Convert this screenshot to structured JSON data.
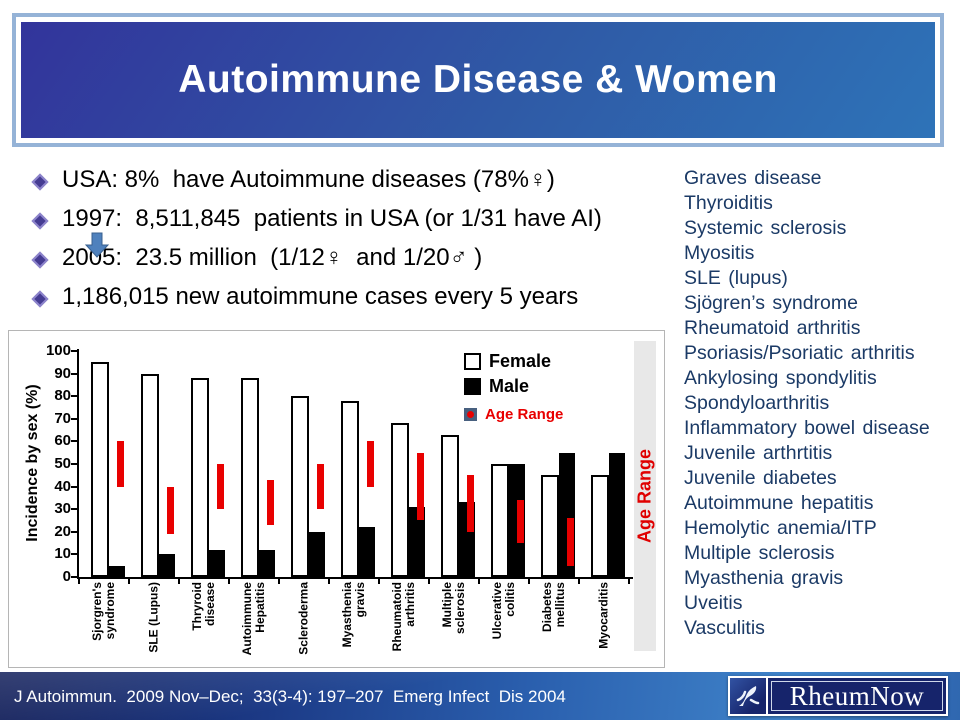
{
  "slide": {
    "title": "Autoimmune Disease & Women",
    "bullets": [
      "USA: 8%  have Autoimmune diseases (78%♀)",
      "1997:  8,511,845  patients in USA (or 1/31 have AI)",
      "2005:  23.5 million  (1/12♀  and 1/20♂ )",
      "1,186,015 new autoimmune cases every 5 years"
    ],
    "disease_list": [
      "Graves disease",
      "Thyroiditis",
      "Systemic sclerosis",
      "Myositis",
      "SLE (lupus)",
      "Sjögren’s syndrome",
      "Rheumatoid arthritis",
      "Psoriasis/Psoriatic arthritis",
      "Ankylosing spondylitis",
      "Spondyloarthritis",
      "Inflammatory bowel disease",
      "Juvenile arthrtitis",
      "Juvenile diabetes",
      "Autoimmune hepatitis",
      "Hemolytic anemia/ITP",
      "Multiple sclerosis",
      "Myasthenia gravis",
      "Uveitis",
      "Vasculitis"
    ],
    "footer": {
      "citation": "J Autoimmun.  2009 Nov–Dec;  33(3-4): 197–207  Emerg Infect  Dis 2004",
      "logo_text": "RheumNow"
    }
  },
  "chart_data": {
    "type": "bar",
    "title": "",
    "xlabel": "",
    "ylabel": "Incidence by sex (%)",
    "ylim": [
      0,
      100
    ],
    "ytick_step": 10,
    "grid": false,
    "legend_position": "top-right",
    "legend": [
      "Female",
      "Male",
      "Age Range"
    ],
    "side_label": "Age Range",
    "categories": [
      "Sjorgren's\nsyndrome",
      "SLE (Lupus)",
      "Thryroid\ndisease",
      "Autoimmune\nHepatitis",
      "Scleroderma",
      "Myasthenia\ngravis",
      "Rheumatoid\narthritis",
      "Multiple\nsclerosis",
      "Ulcerative\ncolitis",
      "Diabetes\nmellitus",
      "Myocarditis"
    ],
    "series": [
      {
        "name": "Female",
        "values": [
          95,
          90,
          88,
          88,
          80,
          78,
          68,
          63,
          50,
          45,
          45
        ]
      },
      {
        "name": "Male",
        "values": [
          5,
          10,
          12,
          12,
          20,
          22,
          31,
          33,
          50,
          55,
          55
        ]
      }
    ],
    "age_range": {
      "name": "Age Range",
      "ranges": [
        [
          40,
          60
        ],
        [
          19,
          40
        ],
        [
          30,
          50
        ],
        [
          23,
          43
        ],
        [
          30,
          50
        ],
        [
          40,
          60
        ],
        [
          25,
          55
        ],
        [
          20,
          45
        ],
        [
          15,
          34
        ],
        [
          5,
          26
        ],
        null
      ]
    }
  },
  "colors": {
    "banner_from": "#32349b",
    "banner_to": "#2e73b8",
    "banner_border": "#95b3d7",
    "list_text": "#1b3a66",
    "accent_red": "#e80000",
    "arrow_blue": "#4f81bd",
    "footer_from": "#0f1c58",
    "footer_to": "#3f83c9",
    "logo_navy": "#16246b",
    "female_bar": "#ffffff",
    "male_bar": "#000000",
    "strip_gray": "#e8e8e8"
  }
}
